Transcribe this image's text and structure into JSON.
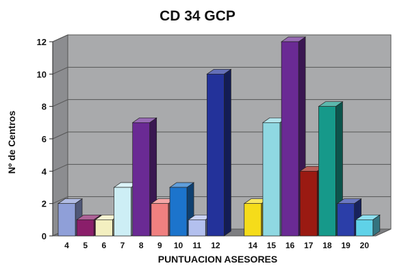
{
  "chart_data": {
    "type": "bar",
    "title": "CD 34 GCP",
    "xlabel": "PUNTUACION ASESORES",
    "ylabel": "Nº de Centros",
    "ylim": [
      0,
      12
    ],
    "yticks": [
      "0",
      "2",
      "4",
      "6",
      "8",
      "10",
      "12"
    ],
    "grid": true,
    "legend": "none",
    "categories": [
      "4",
      "5",
      "6",
      "7",
      "8",
      "9",
      "10",
      "11",
      "12",
      "14",
      "15",
      "16",
      "17",
      "18",
      "19",
      "20"
    ],
    "values": [
      2,
      1,
      1,
      3,
      7,
      2,
      3,
      1,
      10,
      2,
      7,
      12,
      4,
      8,
      2,
      1
    ],
    "colors": [
      "#8f9fd8",
      "#8a1e6a",
      "#f3efc0",
      "#cdeef5",
      "#6a2a94",
      "#f08080",
      "#1c74cc",
      "#b3c0ee",
      "#23329a",
      "#f5dc1a",
      "#8fd8e2",
      "#6a2a94",
      "#9a1a12",
      "#16998a",
      "#2b3ea8",
      "#5fd2e8"
    ]
  }
}
